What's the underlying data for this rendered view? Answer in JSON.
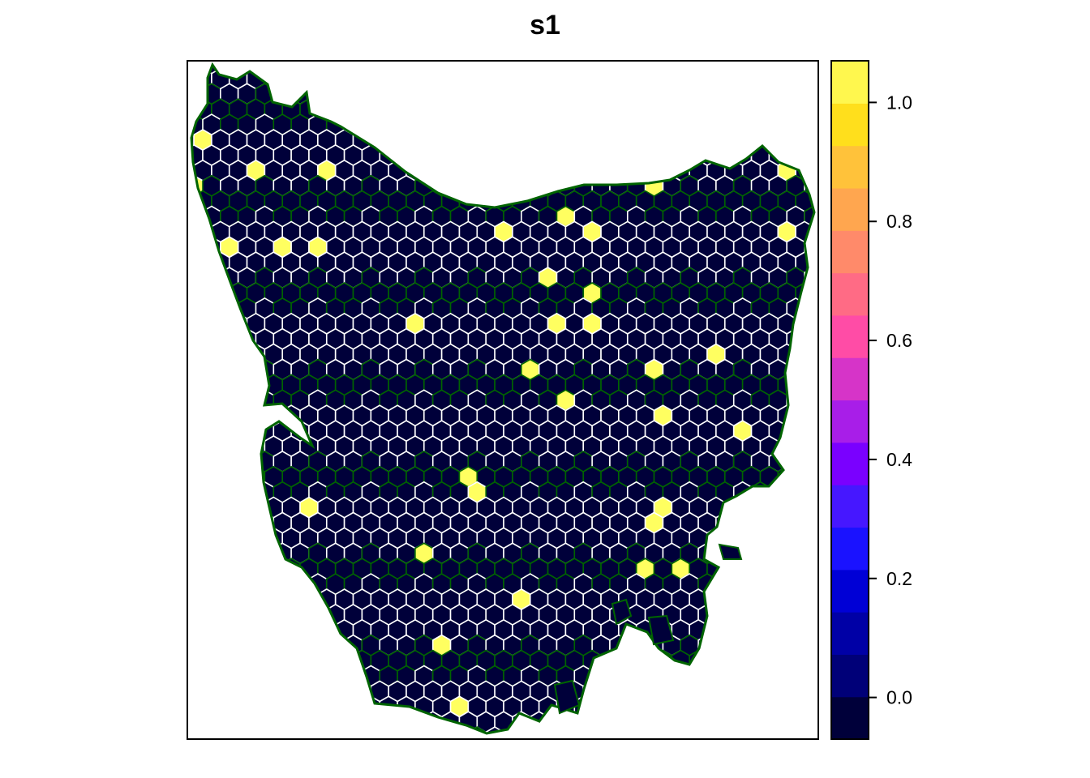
{
  "chart_data": {
    "type": "heatmap",
    "title": "s1",
    "xlabel": "",
    "ylabel": "",
    "legend": {
      "position": "right",
      "ticks": [
        "0.0",
        "0.2",
        "0.4",
        "0.6",
        "0.8",
        "1.0"
      ],
      "tick_values": [
        0.0,
        0.2,
        0.4,
        0.6,
        0.8,
        1.0
      ],
      "range": [
        -0.07,
        1.07
      ],
      "colors": [
        "#00003A",
        "#000078",
        "#0000A6",
        "#0000D6",
        "#1A12FF",
        "#4617FF",
        "#7A00FF",
        "#A81EE8",
        "#D634C8",
        "#FF4CA6",
        "#FF6B85",
        "#FF8A6A",
        "#FFA64F",
        "#FFC23A",
        "#FFDF1C",
        "#FFF74E"
      ]
    },
    "cell_values": [
      0,
      1
    ],
    "selected_count": 33,
    "colors": {
      "unselected": "#00003A",
      "selected": "#FFFF60",
      "grid_a": "#FFFFFF",
      "grid_b": "#006400",
      "coast": "#006400"
    }
  }
}
